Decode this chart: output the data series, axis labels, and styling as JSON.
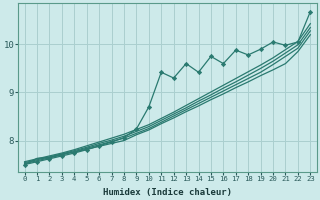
{
  "title": "",
  "xlabel": "Humidex (Indice chaleur)",
  "ylabel": "",
  "bg_color": "#cdeaea",
  "grid_color": "#aacfcf",
  "line_color": "#2a7a70",
  "xlim": [
    -0.5,
    23.5
  ],
  "ylim": [
    7.35,
    10.85
  ],
  "yticks": [
    8,
    9,
    10
  ],
  "xticks": [
    0,
    1,
    2,
    3,
    4,
    5,
    6,
    7,
    8,
    9,
    10,
    11,
    12,
    13,
    14,
    15,
    16,
    17,
    18,
    19,
    20,
    21,
    22,
    23
  ],
  "series_smooth": [
    [
      7.5,
      7.63,
      7.65,
      7.72,
      7.76,
      7.82,
      7.88,
      7.94,
      8.0,
      8.12,
      8.22,
      8.35,
      8.47,
      8.6,
      8.72,
      8.85,
      8.97,
      9.1,
      9.22,
      9.35,
      9.47,
      9.6,
      9.85,
      10.2
    ],
    [
      7.52,
      7.58,
      7.64,
      7.7,
      7.77,
      7.84,
      7.91,
      7.98,
      8.05,
      8.15,
      8.25,
      8.38,
      8.51,
      8.64,
      8.77,
      8.9,
      9.03,
      9.16,
      9.29,
      9.42,
      9.58,
      9.75,
      9.92,
      10.28
    ],
    [
      7.54,
      7.6,
      7.66,
      7.72,
      7.79,
      7.86,
      7.94,
      8.01,
      8.09,
      8.19,
      8.29,
      8.42,
      8.55,
      8.68,
      8.82,
      8.95,
      9.09,
      9.22,
      9.36,
      9.5,
      9.65,
      9.82,
      9.99,
      10.35
    ],
    [
      7.56,
      7.62,
      7.68,
      7.74,
      7.81,
      7.89,
      7.97,
      8.05,
      8.13,
      8.23,
      8.33,
      8.46,
      8.59,
      8.73,
      8.87,
      9.01,
      9.15,
      9.29,
      9.43,
      9.57,
      9.72,
      9.89,
      10.06,
      10.43
    ]
  ],
  "series_marker": [
    7.5,
    7.56,
    7.62,
    7.68,
    7.74,
    7.81,
    7.89,
    7.97,
    8.06,
    8.24,
    8.7,
    9.42,
    9.3,
    9.6,
    9.42,
    9.75,
    9.6,
    9.88,
    9.78,
    9.9,
    10.05,
    9.98,
    10.05,
    10.68
  ]
}
